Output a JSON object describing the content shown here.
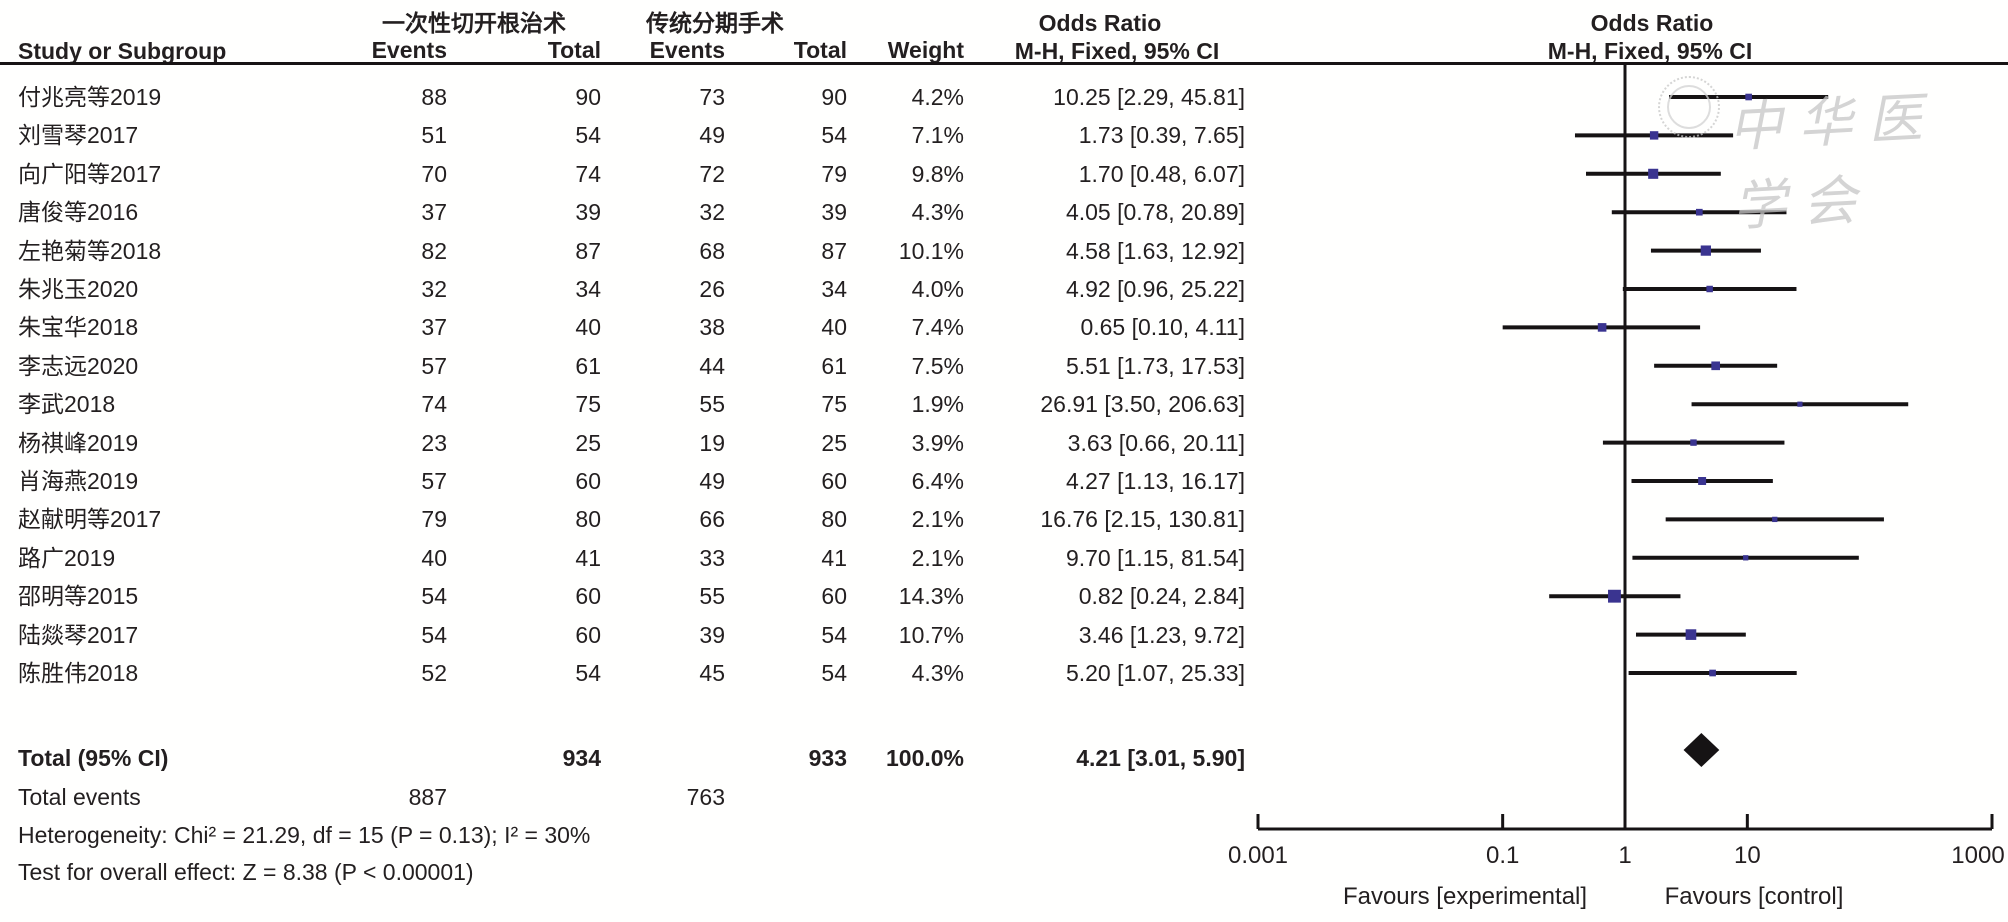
{
  "header": {
    "group1": "一次性切开根治术",
    "group2": "传统分期手术",
    "or_title": "Odds Ratio",
    "or_method": "M-H, Fixed, 95% CI",
    "col_study": "Study or Subgroup",
    "col_events": "Events",
    "col_total": "Total",
    "col_weight": "Weight"
  },
  "watermark": {
    "text": "中华医学会"
  },
  "footer": {
    "total_label": "Total (95% CI)",
    "total_events_label": "Total events",
    "heterogeneity": "Heterogeneity: Chi² = 21.29, df = 15 (P = 0.13); I² = 30%",
    "overall_effect": "Test for overall effect: Z = 8.38 (P < 0.00001)",
    "favours_left": "Favours [experimental]",
    "favours_right": "Favours [control]"
  },
  "chart_data": {
    "type": "forest",
    "effect_measure": "Odds Ratio",
    "model": "M-H, Fixed, 95% CI",
    "x_axis": {
      "scale": "log",
      "ticks": [
        0.001,
        0.1,
        1,
        10,
        1000
      ],
      "tick_labels": [
        "0.001",
        "0.1",
        "1",
        "10",
        "1000"
      ],
      "range": [
        0.001,
        1000
      ]
    },
    "studies": [
      {
        "name": "付兆亮等2019",
        "e1": "88",
        "t1": "90",
        "e2": "73",
        "t2": "90",
        "weight": "4.2%",
        "weight_val": 4.2,
        "or": 10.25,
        "ci_low": 2.29,
        "ci_high": 45.81,
        "label": "10.25 [2.29, 45.81]"
      },
      {
        "name": "刘雪琴2017",
        "e1": "51",
        "t1": "54",
        "e2": "49",
        "t2": "54",
        "weight": "7.1%",
        "weight_val": 7.1,
        "or": 1.73,
        "ci_low": 0.39,
        "ci_high": 7.65,
        "label": "1.73 [0.39, 7.65]"
      },
      {
        "name": "向广阳等2017",
        "e1": "70",
        "t1": "74",
        "e2": "72",
        "t2": "79",
        "weight": "9.8%",
        "weight_val": 9.8,
        "or": 1.7,
        "ci_low": 0.48,
        "ci_high": 6.07,
        "label": "1.70 [0.48, 6.07]"
      },
      {
        "name": "唐俊等2016",
        "e1": "37",
        "t1": "39",
        "e2": "32",
        "t2": "39",
        "weight": "4.3%",
        "weight_val": 4.3,
        "or": 4.05,
        "ci_low": 0.78,
        "ci_high": 20.89,
        "label": "4.05 [0.78, 20.89]"
      },
      {
        "name": "左艳菊等2018",
        "e1": "82",
        "t1": "87",
        "e2": "68",
        "t2": "87",
        "weight": "10.1%",
        "weight_val": 10.1,
        "or": 4.58,
        "ci_low": 1.63,
        "ci_high": 12.92,
        "label": "4.58 [1.63, 12.92]"
      },
      {
        "name": "朱兆玉2020",
        "e1": "32",
        "t1": "34",
        "e2": "26",
        "t2": "34",
        "weight": "4.0%",
        "weight_val": 4.0,
        "or": 4.92,
        "ci_low": 0.96,
        "ci_high": 25.22,
        "label": "4.92 [0.96, 25.22]"
      },
      {
        "name": "朱宝华2018",
        "e1": "37",
        "t1": "40",
        "e2": "38",
        "t2": "40",
        "weight": "7.4%",
        "weight_val": 7.4,
        "or": 0.65,
        "ci_low": 0.1,
        "ci_high": 4.11,
        "label": "0.65 [0.10, 4.11]"
      },
      {
        "name": "李志远2020",
        "e1": "57",
        "t1": "61",
        "e2": "44",
        "t2": "61",
        "weight": "7.5%",
        "weight_val": 7.5,
        "or": 5.51,
        "ci_low": 1.73,
        "ci_high": 17.53,
        "label": "5.51 [1.73, 17.53]"
      },
      {
        "name": "李武2018",
        "e1": "74",
        "t1": "75",
        "e2": "55",
        "t2": "75",
        "weight": "1.9%",
        "weight_val": 1.9,
        "or": 26.91,
        "ci_low": 3.5,
        "ci_high": 206.63,
        "label": "26.91 [3.50, 206.63]"
      },
      {
        "name": "杨祺峰2019",
        "e1": "23",
        "t1": "25",
        "e2": "19",
        "t2": "25",
        "weight": "3.9%",
        "weight_val": 3.9,
        "or": 3.63,
        "ci_low": 0.66,
        "ci_high": 20.11,
        "label": "3.63 [0.66, 20.11]"
      },
      {
        "name": "肖海燕2019",
        "e1": "57",
        "t1": "60",
        "e2": "49",
        "t2": "60",
        "weight": "6.4%",
        "weight_val": 6.4,
        "or": 4.27,
        "ci_low": 1.13,
        "ci_high": 16.17,
        "label": "4.27 [1.13, 16.17]"
      },
      {
        "name": "赵献明等2017",
        "e1": "79",
        "t1": "80",
        "e2": "66",
        "t2": "80",
        "weight": "2.1%",
        "weight_val": 2.1,
        "or": 16.76,
        "ci_low": 2.15,
        "ci_high": 130.81,
        "label": "16.76 [2.15, 130.81]"
      },
      {
        "name": "路广2019",
        "e1": "40",
        "t1": "41",
        "e2": "33",
        "t2": "41",
        "weight": "2.1%",
        "weight_val": 2.1,
        "or": 9.7,
        "ci_low": 1.15,
        "ci_high": 81.54,
        "label": "9.70 [1.15, 81.54]"
      },
      {
        "name": "邵明等2015",
        "e1": "54",
        "t1": "60",
        "e2": "55",
        "t2": "60",
        "weight": "14.3%",
        "weight_val": 14.3,
        "or": 0.82,
        "ci_low": 0.24,
        "ci_high": 2.84,
        "label": "0.82 [0.24, 2.84]"
      },
      {
        "name": "陆燚琴2017",
        "e1": "54",
        "t1": "60",
        "e2": "39",
        "t2": "54",
        "weight": "10.7%",
        "weight_val": 10.7,
        "or": 3.46,
        "ci_low": 1.23,
        "ci_high": 9.72,
        "label": "3.46 [1.23, 9.72]"
      },
      {
        "name": "陈胜伟2018",
        "e1": "52",
        "t1": "54",
        "e2": "45",
        "t2": "54",
        "weight": "4.3%",
        "weight_val": 4.3,
        "or": 5.2,
        "ci_low": 1.07,
        "ci_high": 25.33,
        "label": "5.20 [1.07, 25.33]"
      }
    ],
    "total": {
      "t1": "934",
      "t2": "933",
      "weight": "100.0%",
      "or": 4.21,
      "ci_low": 3.01,
      "ci_high": 5.9,
      "label": "4.21 [3.01, 5.90]"
    },
    "total_events": {
      "e1": "887",
      "e2": "763"
    }
  },
  "colors": {
    "marker": "#3A3490",
    "diamond": "#161314",
    "line": "#161314",
    "text": "#231f20",
    "watermark": "#c6c6c6"
  }
}
